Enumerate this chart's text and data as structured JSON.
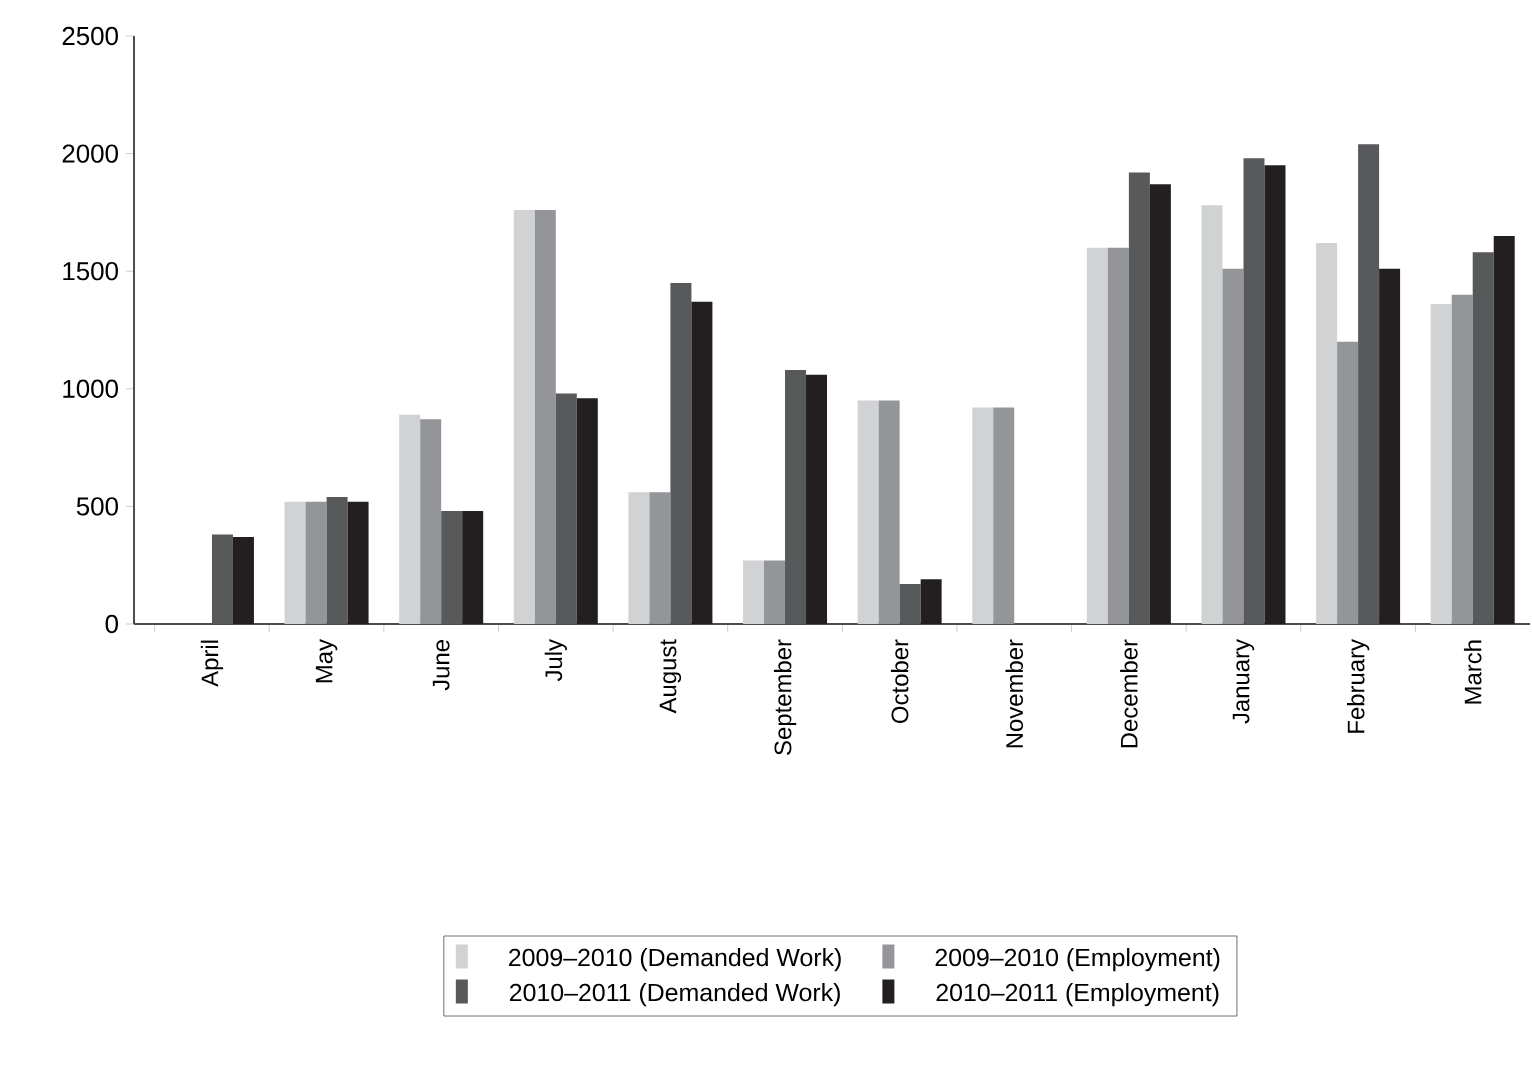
{
  "chart_data": {
    "type": "bar",
    "categories": [
      "April",
      "May",
      "June",
      "July",
      "August",
      "September",
      "October",
      "November",
      "December",
      "January",
      "February",
      "March"
    ],
    "series": [
      {
        "name": "2009–2010 (Demanded Work)",
        "color": "#d1d2d4",
        "values": [
          null,
          520,
          890,
          1760,
          560,
          270,
          950,
          920,
          1600,
          1780,
          1620,
          1360
        ]
      },
      {
        "name": "2009–2010 (Employment)",
        "color": "#939598",
        "values": [
          null,
          520,
          870,
          1760,
          560,
          270,
          950,
          920,
          1600,
          1510,
          1200,
          1400
        ]
      },
      {
        "name": "2010–2011 (Demanded Work)",
        "color": "#58595b",
        "values": [
          380,
          540,
          480,
          980,
          1450,
          1080,
          170,
          null,
          1920,
          1980,
          2040,
          1580
        ]
      },
      {
        "name": "2010–2011 (Employment)",
        "color": "#231f20",
        "values": [
          370,
          520,
          480,
          960,
          1370,
          1060,
          190,
          null,
          1870,
          1950,
          1510,
          1650
        ]
      }
    ],
    "ylim": [
      0,
      2500
    ],
    "yticks": [
      0,
      500,
      1000,
      1500,
      2000,
      2500
    ],
    "legend": "bottom"
  }
}
